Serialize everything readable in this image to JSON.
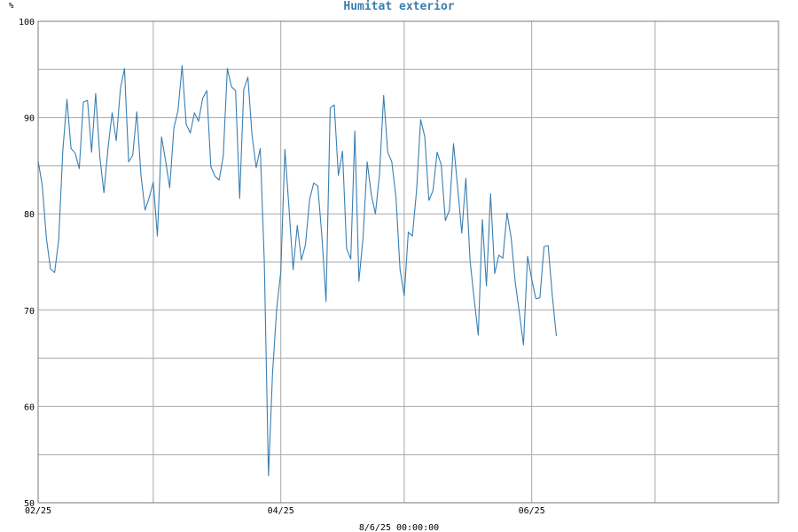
{
  "chart_data": {
    "type": "line",
    "title": "Humitat exterior",
    "unit_label": "%",
    "footer": "8/6/25 00:00:00",
    "ylim": [
      50,
      100
    ],
    "y_ticks": [
      {
        "value": 50,
        "label": "50"
      },
      {
        "value": 60,
        "label": "60"
      },
      {
        "value": 70,
        "label": "70"
      },
      {
        "value": 80,
        "label": "80"
      },
      {
        "value": 90,
        "label": "90"
      },
      {
        "value": 100,
        "label": "100"
      }
    ],
    "y_gridlines": [
      50,
      55,
      60,
      65,
      70,
      75,
      80,
      85,
      90,
      95,
      100
    ],
    "xlim": [
      "2025-02-01",
      "2025-07-31"
    ],
    "x_ticks": [
      {
        "value": "2025-02-01",
        "label": "02/25"
      },
      {
        "value": "2025-04-01",
        "label": "04/25"
      },
      {
        "value": "2025-06-01",
        "label": "06/25"
      }
    ],
    "x_gridlines": [
      "2025-03-01",
      "2025-04-01",
      "2025-05-01",
      "2025-06-01",
      "2025-07-01"
    ],
    "grid": true,
    "colors": {
      "line": "#3a7fb1",
      "title": "#3a7fb1",
      "grid": "#a8a8a8",
      "frame": "#7a7a7a"
    },
    "series": [
      {
        "values": [
          [
            "2025-02-01",
            85.5
          ],
          [
            "2025-02-02",
            83.0
          ],
          [
            "2025-02-03",
            77.5
          ],
          [
            "2025-02-04",
            74.3
          ],
          [
            "2025-02-05",
            73.9
          ],
          [
            "2025-02-06",
            77.3
          ],
          [
            "2025-02-07",
            86.5
          ],
          [
            "2025-02-08",
            91.9
          ],
          [
            "2025-02-09",
            86.8
          ],
          [
            "2025-02-10",
            86.3
          ],
          [
            "2025-02-11",
            84.7
          ],
          [
            "2025-02-12",
            91.6
          ],
          [
            "2025-02-13",
            91.8
          ],
          [
            "2025-02-14",
            86.4
          ],
          [
            "2025-02-15",
            92.5
          ],
          [
            "2025-02-16",
            85.9
          ],
          [
            "2025-02-17",
            82.2
          ],
          [
            "2025-02-18",
            86.9
          ],
          [
            "2025-02-19",
            90.5
          ],
          [
            "2025-02-20",
            87.6
          ],
          [
            "2025-02-21",
            93.0
          ],
          [
            "2025-02-22",
            95.1
          ],
          [
            "2025-02-23",
            85.4
          ],
          [
            "2025-02-24",
            86.1
          ],
          [
            "2025-02-25",
            90.6
          ],
          [
            "2025-02-26",
            84.0
          ],
          [
            "2025-02-27",
            80.4
          ],
          [
            "2025-02-28",
            81.7
          ],
          [
            "2025-03-01",
            83.3
          ],
          [
            "2025-03-02",
            77.7
          ],
          [
            "2025-03-03",
            88.0
          ],
          [
            "2025-03-04",
            85.5
          ],
          [
            "2025-03-05",
            82.7
          ],
          [
            "2025-03-06",
            88.9
          ],
          [
            "2025-03-07",
            90.7
          ],
          [
            "2025-03-08",
            95.4
          ],
          [
            "2025-03-09",
            89.3
          ],
          [
            "2025-03-10",
            88.4
          ],
          [
            "2025-03-11",
            90.5
          ],
          [
            "2025-03-12",
            89.6
          ],
          [
            "2025-03-13",
            92.0
          ],
          [
            "2025-03-14",
            92.8
          ],
          [
            "2025-03-15",
            84.9
          ],
          [
            "2025-03-16",
            83.9
          ],
          [
            "2025-03-17",
            83.5
          ],
          [
            "2025-03-18",
            86.0
          ],
          [
            "2025-03-19",
            95.1
          ],
          [
            "2025-03-20",
            93.2
          ],
          [
            "2025-03-21",
            92.8
          ],
          [
            "2025-03-22",
            81.6
          ],
          [
            "2025-03-23",
            92.9
          ],
          [
            "2025-03-24",
            94.2
          ],
          [
            "2025-03-25",
            88.2
          ],
          [
            "2025-03-26",
            84.8
          ],
          [
            "2025-03-27",
            86.8
          ],
          [
            "2025-03-28",
            75.0
          ],
          [
            "2025-03-29",
            52.8
          ],
          [
            "2025-03-30",
            63.5
          ],
          [
            "2025-03-31",
            70.2
          ],
          [
            "2025-04-01",
            74.0
          ],
          [
            "2025-04-02",
            86.7
          ],
          [
            "2025-04-03",
            80.5
          ],
          [
            "2025-04-04",
            74.2
          ],
          [
            "2025-04-05",
            78.8
          ],
          [
            "2025-04-06",
            75.2
          ],
          [
            "2025-04-07",
            76.8
          ],
          [
            "2025-04-08",
            81.5
          ],
          [
            "2025-04-09",
            83.2
          ],
          [
            "2025-04-10",
            82.9
          ],
          [
            "2025-04-11",
            77.6
          ],
          [
            "2025-04-12",
            70.9
          ],
          [
            "2025-04-13",
            91.0
          ],
          [
            "2025-04-14",
            91.3
          ],
          [
            "2025-04-15",
            84.0
          ],
          [
            "2025-04-16",
            86.5
          ],
          [
            "2025-04-17",
            76.4
          ],
          [
            "2025-04-18",
            75.3
          ],
          [
            "2025-04-19",
            88.6
          ],
          [
            "2025-04-20",
            73.0
          ],
          [
            "2025-04-21",
            77.6
          ],
          [
            "2025-04-22",
            85.4
          ],
          [
            "2025-04-23",
            82.0
          ],
          [
            "2025-04-24",
            80.0
          ],
          [
            "2025-04-25",
            84.1
          ],
          [
            "2025-04-26",
            92.3
          ],
          [
            "2025-04-27",
            86.4
          ],
          [
            "2025-04-28",
            85.4
          ],
          [
            "2025-04-29",
            81.7
          ],
          [
            "2025-04-30",
            74.2
          ],
          [
            "2025-05-01",
            71.5
          ],
          [
            "2025-05-02",
            78.1
          ],
          [
            "2025-05-03",
            77.7
          ],
          [
            "2025-05-04",
            82.4
          ],
          [
            "2025-05-05",
            89.8
          ],
          [
            "2025-05-06",
            88.0
          ],
          [
            "2025-05-07",
            81.4
          ],
          [
            "2025-05-08",
            82.4
          ],
          [
            "2025-05-09",
            86.4
          ],
          [
            "2025-05-10",
            85.1
          ],
          [
            "2025-05-11",
            79.3
          ],
          [
            "2025-05-12",
            80.4
          ],
          [
            "2025-05-13",
            87.3
          ],
          [
            "2025-05-14",
            82.7
          ],
          [
            "2025-05-15",
            78.0
          ],
          [
            "2025-05-16",
            83.7
          ],
          [
            "2025-05-17",
            75.2
          ],
          [
            "2025-05-18",
            71.2
          ],
          [
            "2025-05-19",
            67.4
          ],
          [
            "2025-05-20",
            79.4
          ],
          [
            "2025-05-21",
            72.5
          ],
          [
            "2025-05-22",
            82.1
          ],
          [
            "2025-05-23",
            73.8
          ],
          [
            "2025-05-24",
            75.7
          ],
          [
            "2025-05-25",
            75.4
          ],
          [
            "2025-05-26",
            80.1
          ],
          [
            "2025-05-27",
            77.5
          ],
          [
            "2025-05-28",
            72.9
          ],
          [
            "2025-05-29",
            69.7
          ],
          [
            "2025-05-30",
            66.4
          ],
          [
            "2025-05-31",
            75.6
          ],
          [
            "2025-06-01",
            73.2
          ],
          [
            "2025-06-02",
            71.2
          ],
          [
            "2025-06-03",
            71.3
          ],
          [
            "2025-06-04",
            76.6
          ],
          [
            "2025-06-05",
            76.7
          ],
          [
            "2025-06-06",
            71.5
          ],
          [
            "2025-06-07",
            67.3
          ]
        ]
      }
    ]
  }
}
